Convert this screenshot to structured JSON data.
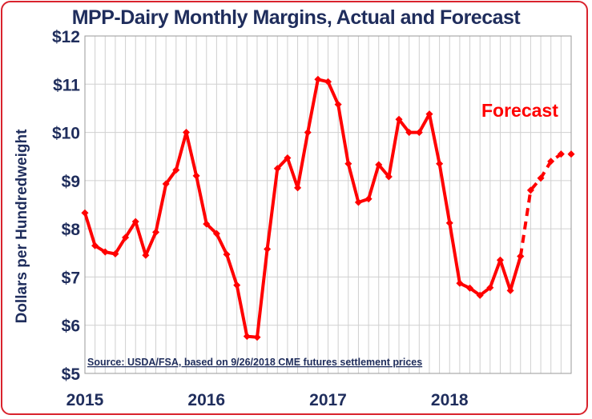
{
  "chart_data": {
    "type": "line",
    "title": "MPP-Dairy Monthly Margins, Actual and Forecast",
    "ylabel": "Dollars per Hundredweight",
    "xlabel": "",
    "ylim": [
      5,
      12
    ],
    "yticks": [
      5,
      6,
      7,
      8,
      9,
      10,
      11,
      12
    ],
    "ytick_labels": [
      "$5",
      "$6",
      "$7",
      "$8",
      "$9",
      "$10",
      "$11",
      "$12"
    ],
    "xticks": [
      "2015",
      "2016",
      "2017",
      "2018"
    ],
    "grid": true,
    "annotation": "Forecast",
    "source": "Source:  USDA/FSA, based on 9/26/2018 CME futures settlement prices",
    "colors": {
      "line": "#ff0000",
      "text": "#1f2d5c",
      "frame": "#d9232d",
      "grid": "#d0d0d0"
    },
    "series": [
      {
        "style": "solid",
        "x": [
          "2015-01",
          "2015-02",
          "2015-03",
          "2015-04",
          "2015-05",
          "2015-06",
          "2015-07",
          "2015-08",
          "2015-09",
          "2015-10",
          "2015-11",
          "2015-12",
          "2016-01",
          "2016-02",
          "2016-03",
          "2016-04",
          "2016-05",
          "2016-06",
          "2016-07",
          "2016-08",
          "2016-09",
          "2016-10",
          "2016-11",
          "2016-12",
          "2017-01",
          "2017-02",
          "2017-03",
          "2017-04",
          "2017-05",
          "2017-06",
          "2017-07",
          "2017-08",
          "2017-09",
          "2017-10",
          "2017-11",
          "2017-12",
          "2018-01",
          "2018-02",
          "2018-03",
          "2018-04",
          "2018-05",
          "2018-06",
          "2018-07",
          "2018-08"
        ],
        "values": [
          8.33,
          7.65,
          7.52,
          7.48,
          7.82,
          8.15,
          7.45,
          7.93,
          8.93,
          9.22,
          10.0,
          9.1,
          8.1,
          7.9,
          7.47,
          6.83,
          5.77,
          5.75,
          7.58,
          9.25,
          9.47,
          8.85,
          10.0,
          11.1,
          11.05,
          10.58,
          9.35,
          8.55,
          8.62,
          9.33,
          9.08,
          10.27,
          10.0,
          10.0,
          10.38,
          9.35,
          8.12,
          6.87,
          6.77,
          6.62,
          6.78,
          7.35,
          6.72,
          7.43
        ]
      },
      {
        "style": "dashed",
        "x": [
          "2018-08",
          "2018-09",
          "2018-10",
          "2018-11",
          "2018-12",
          "2019-01"
        ],
        "values": [
          7.43,
          8.8,
          9.05,
          9.4,
          9.55,
          9.55
        ]
      }
    ]
  }
}
